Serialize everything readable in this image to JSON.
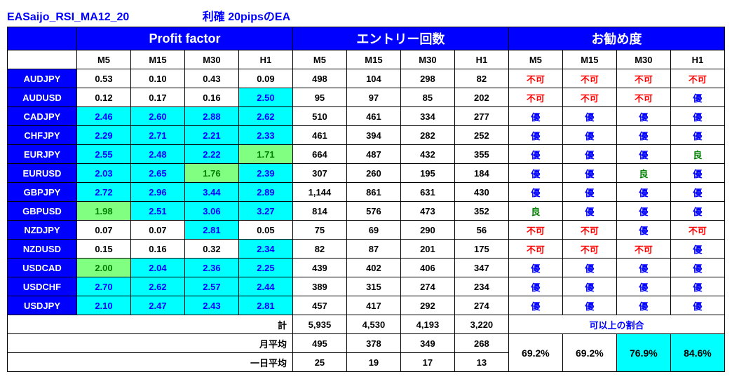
{
  "title_main": "EASaijo_RSI_MA12_20",
  "title_sub": "利確 20pipsのEA",
  "headers": {
    "pf": "Profit factor",
    "entry": "エントリー回数",
    "rec": "お勧め度"
  },
  "timeframes": [
    "M5",
    "M15",
    "M30",
    "H1"
  ],
  "pairs": [
    "AUDJPY",
    "AUDUSD",
    "CADJPY",
    "CHFJPY",
    "EURJPY",
    "EURUSD",
    "GBPJPY",
    "GBPUSD",
    "NZDJPY",
    "NZDUSD",
    "USDCAD",
    "USDCHF",
    "USDJPY"
  ],
  "pf": [
    [
      "0.53",
      "0.10",
      "0.43",
      "0.09"
    ],
    [
      "0.12",
      "0.17",
      "0.16",
      "2.50"
    ],
    [
      "2.46",
      "2.60",
      "2.88",
      "2.62"
    ],
    [
      "2.29",
      "2.71",
      "2.21",
      "2.33"
    ],
    [
      "2.55",
      "2.48",
      "2.22",
      "1.71"
    ],
    [
      "2.03",
      "2.65",
      "1.76",
      "2.39"
    ],
    [
      "2.72",
      "2.96",
      "3.44",
      "2.89"
    ],
    [
      "1.98",
      "2.51",
      "3.06",
      "3.27"
    ],
    [
      "0.07",
      "0.07",
      "2.81",
      "0.05"
    ],
    [
      "0.15",
      "0.16",
      "0.32",
      "2.34"
    ],
    [
      "2.00",
      "2.04",
      "2.36",
      "2.25"
    ],
    [
      "2.70",
      "2.62",
      "2.57",
      "2.44"
    ],
    [
      "2.10",
      "2.47",
      "2.43",
      "2.81"
    ]
  ],
  "pf_cls": [
    [
      "pf-0",
      "pf-0",
      "pf-0",
      "pf-0"
    ],
    [
      "pf-0",
      "pf-0",
      "pf-0",
      "pf-2"
    ],
    [
      "pf-2",
      "pf-2",
      "pf-2",
      "pf-2"
    ],
    [
      "pf-2",
      "pf-2",
      "pf-2",
      "pf-2"
    ],
    [
      "pf-2",
      "pf-2",
      "pf-2",
      "pf-1"
    ],
    [
      "pf-2",
      "pf-2",
      "pf-1",
      "pf-2"
    ],
    [
      "pf-2",
      "pf-2",
      "pf-2",
      "pf-2"
    ],
    [
      "pf-1",
      "pf-2",
      "pf-2",
      "pf-2"
    ],
    [
      "pf-0",
      "pf-0",
      "pf-2",
      "pf-0"
    ],
    [
      "pf-0",
      "pf-0",
      "pf-0",
      "pf-2"
    ],
    [
      "pf-1",
      "pf-2",
      "pf-2",
      "pf-2"
    ],
    [
      "pf-2",
      "pf-2",
      "pf-2",
      "pf-2"
    ],
    [
      "pf-2",
      "pf-2",
      "pf-2",
      "pf-2"
    ]
  ],
  "entry": [
    [
      "498",
      "104",
      "298",
      "82"
    ],
    [
      "95",
      "97",
      "85",
      "202"
    ],
    [
      "510",
      "461",
      "334",
      "277"
    ],
    [
      "461",
      "394",
      "282",
      "252"
    ],
    [
      "664",
      "487",
      "432",
      "355"
    ],
    [
      "307",
      "260",
      "195",
      "184"
    ],
    [
      "1,144",
      "861",
      "631",
      "430"
    ],
    [
      "814",
      "576",
      "473",
      "352"
    ],
    [
      "75",
      "69",
      "290",
      "56"
    ],
    [
      "82",
      "87",
      "201",
      "175"
    ],
    [
      "439",
      "402",
      "406",
      "347"
    ],
    [
      "389",
      "315",
      "274",
      "234"
    ],
    [
      "457",
      "417",
      "292",
      "274"
    ]
  ],
  "rec": [
    [
      "不可",
      "不可",
      "不可",
      "不可"
    ],
    [
      "不可",
      "不可",
      "不可",
      "優"
    ],
    [
      "優",
      "優",
      "優",
      "優"
    ],
    [
      "優",
      "優",
      "優",
      "優"
    ],
    [
      "優",
      "優",
      "優",
      "良"
    ],
    [
      "優",
      "優",
      "良",
      "優"
    ],
    [
      "優",
      "優",
      "優",
      "優"
    ],
    [
      "良",
      "優",
      "優",
      "優"
    ],
    [
      "不可",
      "不可",
      "優",
      "不可"
    ],
    [
      "不可",
      "不可",
      "不可",
      "優"
    ],
    [
      "優",
      "優",
      "優",
      "優"
    ],
    [
      "優",
      "優",
      "優",
      "優"
    ],
    [
      "優",
      "優",
      "優",
      "優"
    ]
  ],
  "rec_cls": [
    [
      "rec-huka",
      "rec-huka",
      "rec-huka",
      "rec-huka"
    ],
    [
      "rec-huka",
      "rec-huka",
      "rec-huka",
      "rec-yu"
    ],
    [
      "rec-yu",
      "rec-yu",
      "rec-yu",
      "rec-yu"
    ],
    [
      "rec-yu",
      "rec-yu",
      "rec-yu",
      "rec-yu"
    ],
    [
      "rec-yu",
      "rec-yu",
      "rec-yu",
      "rec-ryo"
    ],
    [
      "rec-yu",
      "rec-yu",
      "rec-ryo",
      "rec-yu"
    ],
    [
      "rec-yu",
      "rec-yu",
      "rec-yu",
      "rec-yu"
    ],
    [
      "rec-ryo",
      "rec-yu",
      "rec-yu",
      "rec-yu"
    ],
    [
      "rec-huka",
      "rec-huka",
      "rec-yu",
      "rec-huka"
    ],
    [
      "rec-huka",
      "rec-huka",
      "rec-huka",
      "rec-yu"
    ],
    [
      "rec-yu",
      "rec-yu",
      "rec-yu",
      "rec-yu"
    ],
    [
      "rec-yu",
      "rec-yu",
      "rec-yu",
      "rec-yu"
    ],
    [
      "rec-yu",
      "rec-yu",
      "rec-yu",
      "rec-yu"
    ]
  ],
  "sum_labels": {
    "kei": "計",
    "month": "月平均",
    "day": "一日平均"
  },
  "sum_kei": [
    "5,935",
    "4,530",
    "4,193",
    "3,220"
  ],
  "sum_month": [
    "495",
    "378",
    "349",
    "268"
  ],
  "sum_day": [
    "25",
    "19",
    "17",
    "13"
  ],
  "ratio_label": "可以上の割合",
  "ratio_vals": [
    "69.2%",
    "69.2%",
    "76.9%",
    "84.6%"
  ],
  "ratio_cls": [
    "",
    "",
    "ratio-hi",
    "ratio-hi"
  ]
}
